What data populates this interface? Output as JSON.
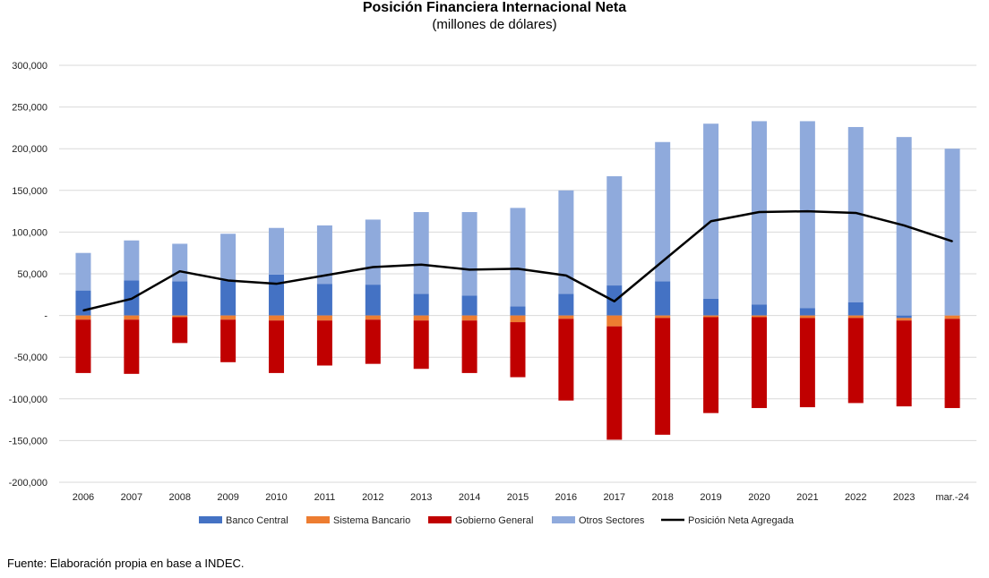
{
  "chart_data": {
    "type": "bar",
    "title": "Posición Financiera Internacional Neta",
    "subtitle": "(millones de dólares)",
    "categories": [
      "2006",
      "2007",
      "2008",
      "2009",
      "2010",
      "2011",
      "2012",
      "2013",
      "2014",
      "2015",
      "2016",
      "2017",
      "2018",
      "2019",
      "2020",
      "2021",
      "2022",
      "2023",
      "mar.-24"
    ],
    "ylim": [
      -200000,
      300000
    ],
    "yticks": [
      -200000,
      -150000,
      -100000,
      -50000,
      0,
      50000,
      100000,
      150000,
      200000,
      250000,
      300000
    ],
    "ytick_labels": [
      "-200,000",
      "-150,000",
      "-100,000",
      "-50,000",
      "-",
      "50,000",
      "100,000",
      "150,000",
      "200,000",
      "250,000",
      "300,000"
    ],
    "grid": true,
    "legend_position": "bottom",
    "stacked": true,
    "series": [
      {
        "name": "Banco Central",
        "kind": "bar",
        "color": "#4472C4",
        "values": [
          30000,
          42000,
          41000,
          42000,
          49000,
          38000,
          37000,
          26000,
          24000,
          11000,
          26000,
          36000,
          41000,
          20000,
          13000,
          9000,
          16000,
          -3000,
          0
        ]
      },
      {
        "name": "Sistema Bancario",
        "kind": "bar",
        "color": "#ED7D31",
        "values": [
          -5000,
          -5000,
          -2000,
          -5000,
          -6000,
          -6000,
          -5000,
          -6000,
          -6000,
          -8000,
          -4000,
          -13000,
          -3000,
          -2000,
          -2000,
          -3000,
          -3000,
          -3000,
          -4000
        ]
      },
      {
        "name": "Gobierno General",
        "kind": "bar",
        "color": "#C00000",
        "values": [
          -64000,
          -65000,
          -31000,
          -51000,
          -63000,
          -54000,
          -53000,
          -58000,
          -63000,
          -66000,
          -98000,
          -136000,
          -140000,
          -115000,
          -109000,
          -107000,
          -102000,
          -103000,
          -107000
        ]
      },
      {
        "name": "Otros Sectores",
        "kind": "bar",
        "color": "#8FAADC",
        "values": [
          45000,
          48000,
          45000,
          56000,
          56000,
          70000,
          78000,
          98000,
          100000,
          118000,
          124000,
          131000,
          167000,
          210000,
          220000,
          224000,
          210000,
          214000,
          200000
        ]
      },
      {
        "name": "Posición Neta Agregada",
        "kind": "line",
        "color": "#000000",
        "values": [
          6000,
          20000,
          53000,
          42000,
          38000,
          48000,
          58000,
          61000,
          55000,
          56000,
          48000,
          17000,
          65000,
          113000,
          124000,
          125000,
          123000,
          108000,
          89000
        ]
      }
    ]
  },
  "source_note": "Fuente: Elaboración propia en base a INDEC."
}
